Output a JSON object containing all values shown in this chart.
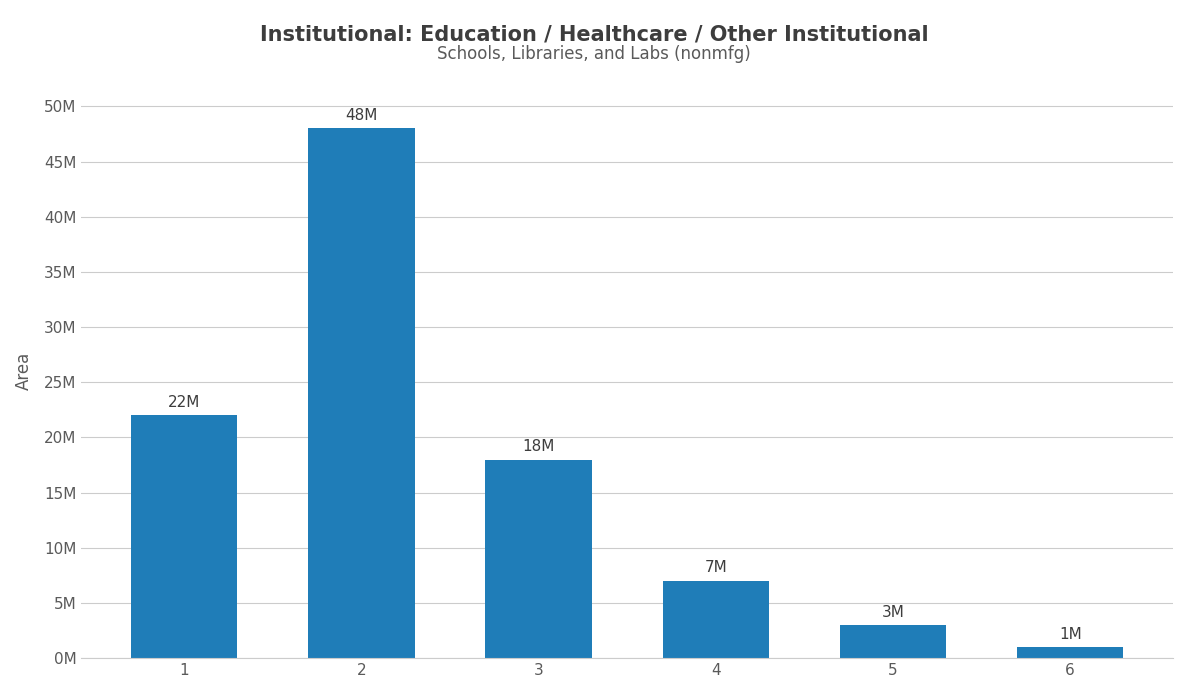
{
  "title": "Institutional: Education / Healthcare / Other Institutional",
  "subtitle": "Schools, Libraries, and Labs (nonmfg)",
  "categories": [
    1,
    2,
    3,
    4,
    5,
    6
  ],
  "values": [
    22000000,
    48000000,
    18000000,
    7000000,
    3000000,
    1000000
  ],
  "labels": [
    "22M",
    "48M",
    "18M",
    "7M",
    "3M",
    "1M"
  ],
  "bar_color": "#1f7db8",
  "ylabel": "Area",
  "ylim": [
    0,
    52000000
  ],
  "yticks": [
    0,
    5000000,
    10000000,
    15000000,
    20000000,
    25000000,
    30000000,
    35000000,
    40000000,
    45000000,
    50000000
  ],
  "ytick_labels": [
    "0M",
    "5M",
    "10M",
    "15M",
    "20M",
    "25M",
    "30M",
    "35M",
    "40M",
    "45M",
    "50M"
  ],
  "background_color": "#ffffff",
  "title_color": "#3d3d3d",
  "subtitle_color": "#5a5a5a",
  "label_fontsize": 11,
  "title_fontsize": 15,
  "subtitle_fontsize": 12,
  "ylabel_fontsize": 12,
  "tick_fontsize": 11
}
